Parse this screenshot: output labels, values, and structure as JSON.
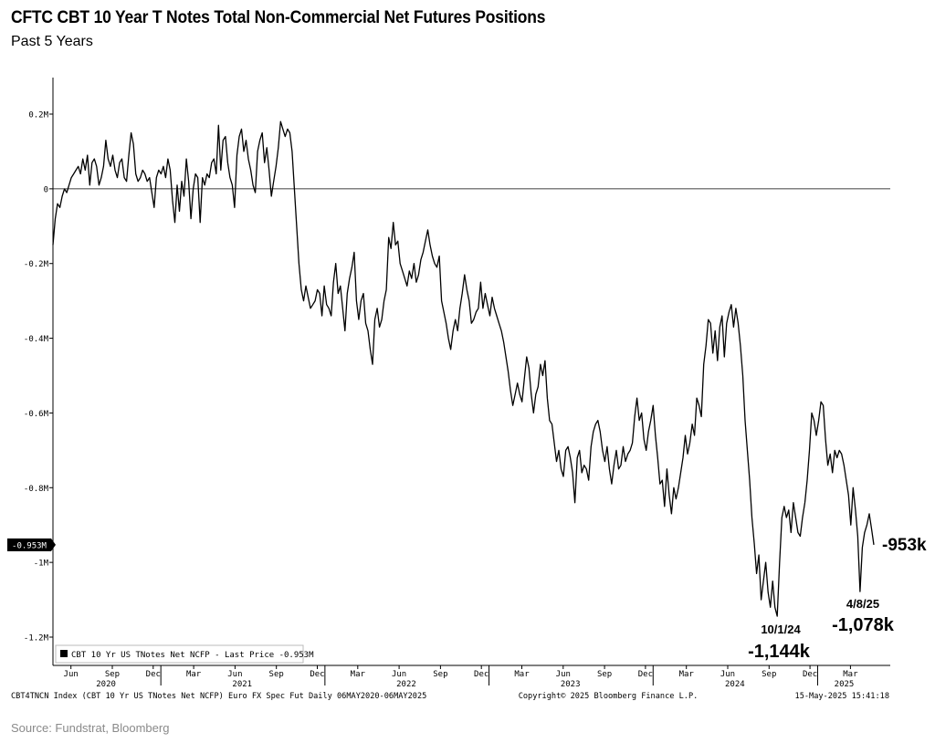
{
  "header": {
    "title": "CFTC CBT 10 Year T Notes Total Non-Commercial Net Futures Positions",
    "subtitle": "Past 5 Years"
  },
  "chart_data": {
    "type": "line",
    "series": [
      {
        "name": "CBT 10 Yr US TNotes Net NCFP",
        "unit": "M",
        "x_start": "2020-05-06",
        "x_end": "2025-05-06",
        "values": [
          -0.15,
          -0.08,
          -0.04,
          -0.05,
          -0.02,
          0.0,
          -0.01,
          0.01,
          0.03,
          0.04,
          0.05,
          0.06,
          0.04,
          0.08,
          0.05,
          0.09,
          0.01,
          0.07,
          0.08,
          0.06,
          0.01,
          0.03,
          0.06,
          0.13,
          0.08,
          0.06,
          0.09,
          0.05,
          0.03,
          0.07,
          0.08,
          0.03,
          0.02,
          0.09,
          0.15,
          0.12,
          0.04,
          0.02,
          0.03,
          0.05,
          0.04,
          0.02,
          0.03,
          -0.01,
          -0.05,
          0.03,
          0.05,
          0.04,
          0.06,
          0.03,
          0.08,
          0.05,
          -0.03,
          -0.09,
          0.01,
          -0.06,
          0.02,
          -0.02,
          0.08,
          0.02,
          -0.08,
          0.0,
          0.04,
          0.03,
          -0.09,
          0.03,
          0.01,
          0.04,
          0.03,
          0.07,
          0.08,
          0.04,
          0.17,
          0.05,
          0.13,
          0.14,
          0.07,
          0.03,
          0.01,
          -0.05,
          0.09,
          0.14,
          0.16,
          0.1,
          0.13,
          0.08,
          0.05,
          0.01,
          -0.01,
          0.1,
          0.13,
          0.15,
          0.07,
          0.11,
          0.05,
          -0.02,
          0.02,
          0.06,
          0.11,
          0.18,
          0.16,
          0.14,
          0.16,
          0.15,
          0.1,
          0.0,
          -0.1,
          -0.2,
          -0.27,
          -0.3,
          -0.26,
          -0.29,
          -0.32,
          -0.31,
          -0.3,
          -0.27,
          -0.28,
          -0.34,
          -0.26,
          -0.31,
          -0.32,
          -0.34,
          -0.25,
          -0.2,
          -0.28,
          -0.26,
          -0.32,
          -0.38,
          -0.28,
          -0.24,
          -0.21,
          -0.17,
          -0.3,
          -0.35,
          -0.3,
          -0.28,
          -0.36,
          -0.38,
          -0.43,
          -0.47,
          -0.35,
          -0.32,
          -0.37,
          -0.35,
          -0.3,
          -0.27,
          -0.13,
          -0.16,
          -0.09,
          -0.15,
          -0.14,
          -0.2,
          -0.22,
          -0.24,
          -0.26,
          -0.22,
          -0.24,
          -0.2,
          -0.25,
          -0.23,
          -0.19,
          -0.17,
          -0.14,
          -0.11,
          -0.15,
          -0.18,
          -0.2,
          -0.21,
          -0.18,
          -0.3,
          -0.33,
          -0.36,
          -0.4,
          -0.43,
          -0.38,
          -0.35,
          -0.38,
          -0.32,
          -0.28,
          -0.23,
          -0.27,
          -0.3,
          -0.36,
          -0.35,
          -0.33,
          -0.32,
          -0.25,
          -0.32,
          -0.28,
          -0.31,
          -0.34,
          -0.29,
          -0.32,
          -0.34,
          -0.36,
          -0.38,
          -0.41,
          -0.45,
          -0.49,
          -0.54,
          -0.58,
          -0.55,
          -0.52,
          -0.55,
          -0.57,
          -0.51,
          -0.45,
          -0.48,
          -0.55,
          -0.6,
          -0.55,
          -0.53,
          -0.47,
          -0.5,
          -0.46,
          -0.56,
          -0.62,
          -0.63,
          -0.68,
          -0.73,
          -0.7,
          -0.75,
          -0.77,
          -0.7,
          -0.69,
          -0.72,
          -0.76,
          -0.84,
          -0.72,
          -0.7,
          -0.76,
          -0.74,
          -0.75,
          -0.78,
          -0.69,
          -0.65,
          -0.63,
          -0.62,
          -0.65,
          -0.7,
          -0.73,
          -0.69,
          -0.75,
          -0.79,
          -0.74,
          -0.7,
          -0.75,
          -0.74,
          -0.69,
          -0.73,
          -0.71,
          -0.7,
          -0.68,
          -0.61,
          -0.56,
          -0.62,
          -0.6,
          -0.67,
          -0.7,
          -0.65,
          -0.62,
          -0.58,
          -0.66,
          -0.72,
          -0.79,
          -0.78,
          -0.85,
          -0.75,
          -0.82,
          -0.87,
          -0.8,
          -0.83,
          -0.8,
          -0.76,
          -0.72,
          -0.66,
          -0.71,
          -0.68,
          -0.63,
          -0.66,
          -0.56,
          -0.58,
          -0.61,
          -0.47,
          -0.42,
          -0.35,
          -0.36,
          -0.44,
          -0.38,
          -0.46,
          -0.37,
          -0.34,
          -0.45,
          -0.36,
          -0.33,
          -0.31,
          -0.37,
          -0.32,
          -0.36,
          -0.42,
          -0.5,
          -0.62,
          -0.7,
          -0.78,
          -0.88,
          -0.95,
          -1.03,
          -0.98,
          -1.1,
          -1.05,
          -1.0,
          -1.08,
          -1.12,
          -1.05,
          -1.12,
          -1.144,
          -1.0,
          -0.88,
          -0.85,
          -0.88,
          -0.86,
          -0.92,
          -0.84,
          -0.88,
          -0.92,
          -0.93,
          -0.88,
          -0.84,
          -0.78,
          -0.7,
          -0.6,
          -0.62,
          -0.66,
          -0.62,
          -0.57,
          -0.58,
          -0.67,
          -0.74,
          -0.71,
          -0.76,
          -0.7,
          -0.72,
          -0.7,
          -0.71,
          -0.74,
          -0.78,
          -0.82,
          -0.9,
          -0.8,
          -0.86,
          -0.93,
          -1.078,
          -0.96,
          -0.92,
          -0.9,
          -0.87,
          -0.91,
          -0.953
        ]
      }
    ],
    "y_axis": {
      "min": -1.25,
      "max": 0.3,
      "ticks": [
        0.2,
        0,
        -0.2,
        -0.4,
        -0.6,
        -0.8,
        -1,
        -1.2
      ],
      "tick_labels": [
        "0.2M",
        "0",
        "-0.2M",
        "-0.4M",
        "-0.6M",
        "-0.8M",
        "-1M",
        "-1.2M"
      ]
    },
    "x_axis": {
      "months": [
        {
          "label": "Jun",
          "date": "2020-06-15"
        },
        {
          "label": "Sep",
          "date": "2020-09-15"
        },
        {
          "label": "Dec",
          "date": "2020-12-15"
        },
        {
          "label": "Mar",
          "date": "2021-03-15"
        },
        {
          "label": "Jun",
          "date": "2021-06-15"
        },
        {
          "label": "Sep",
          "date": "2021-09-15"
        },
        {
          "label": "Dec",
          "date": "2021-12-15"
        },
        {
          "label": "Mar",
          "date": "2022-03-15"
        },
        {
          "label": "Jun",
          "date": "2022-06-15"
        },
        {
          "label": "Sep",
          "date": "2022-09-15"
        },
        {
          "label": "Dec",
          "date": "2022-12-15"
        },
        {
          "label": "Mar",
          "date": "2023-03-15"
        },
        {
          "label": "Jun",
          "date": "2023-06-15"
        },
        {
          "label": "Sep",
          "date": "2023-09-15"
        },
        {
          "label": "Dec",
          "date": "2023-12-15"
        },
        {
          "label": "Mar",
          "date": "2024-03-15"
        },
        {
          "label": "Jun",
          "date": "2024-06-15"
        },
        {
          "label": "Sep",
          "date": "2024-09-15"
        },
        {
          "label": "Dec",
          "date": "2024-12-15"
        },
        {
          "label": "Mar",
          "date": "2025-03-15"
        }
      ],
      "years": [
        {
          "label": "2020",
          "date": "2020-09-01"
        },
        {
          "label": "2021",
          "date": "2021-07-01"
        },
        {
          "label": "2022",
          "date": "2022-07-01"
        },
        {
          "label": "2023",
          "date": "2023-07-01"
        },
        {
          "label": "2024",
          "date": "2024-07-01"
        },
        {
          "label": "2025",
          "date": "2025-03-01"
        }
      ],
      "year_boundaries": [
        "2021-01-01",
        "2022-01-01",
        "2023-01-01",
        "2024-01-01",
        "2025-01-01"
      ]
    },
    "reference_line": 0,
    "last_price_label": "-0.953M",
    "legend": "CBT 10 Yr US TNotes Net NCFP - Last Price -0.953M",
    "annotations": {
      "last": {
        "label": "-953k",
        "value": -0.953
      },
      "min_2024": {
        "date_label": "10/1/24",
        "value_label": "-1,144k",
        "value": -1.144
      },
      "min_2025": {
        "date_label": "4/8/25",
        "value_label": "-1,078k",
        "value": -1.078
      }
    }
  },
  "footer": {
    "left": "CBT4TNCN Index (CBT 10 Yr US TNotes Net NCFP) Euro FX Spec Fut  Daily 06MAY2020-06MAY2025",
    "center": "Copyright© 2025 Bloomberg Finance L.P.",
    "right": "15-May-2025 15:41:18",
    "source": "Source: Fundstrat, Bloomberg"
  },
  "colors": {
    "line": "#000000",
    "axis": "#000000",
    "muted": "#8a8a8a"
  }
}
